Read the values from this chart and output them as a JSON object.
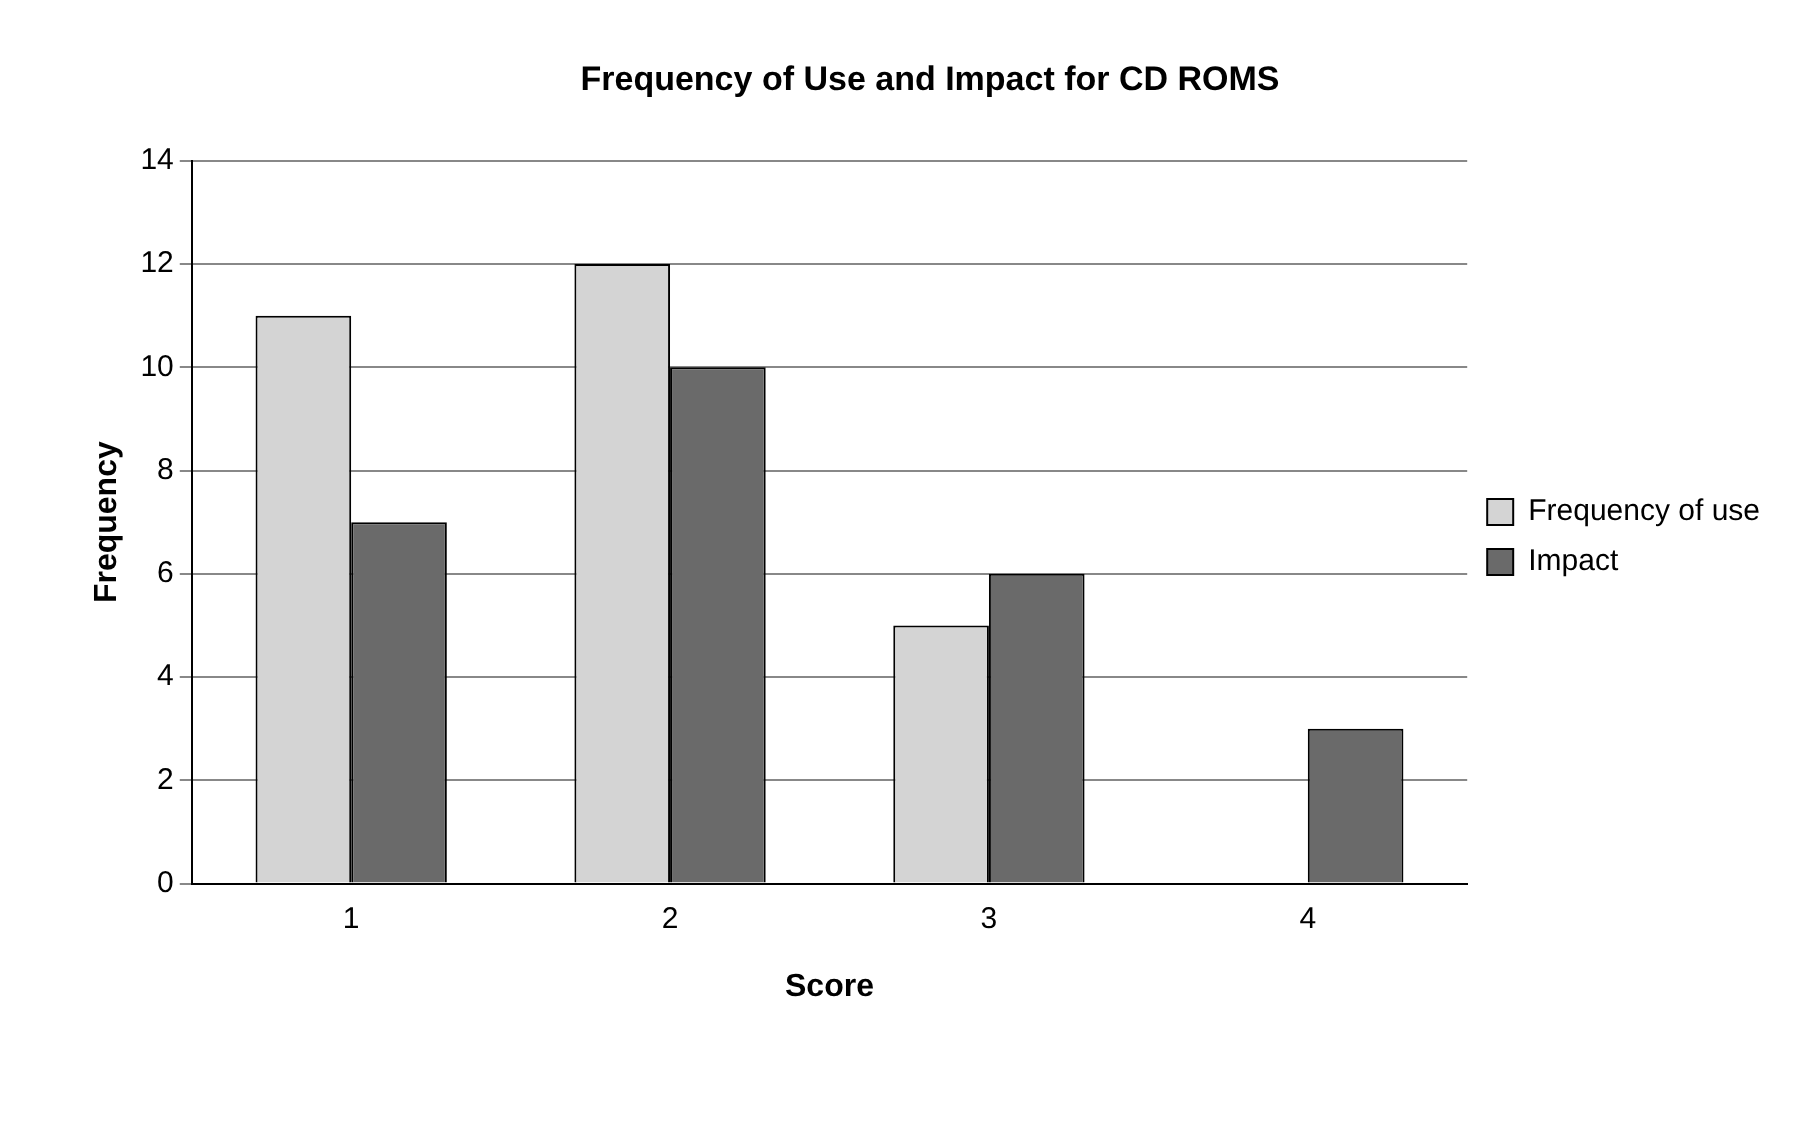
{
  "chart_data": {
    "type": "bar",
    "title": "Frequency of Use and Impact for CD ROMS",
    "xlabel": "Score",
    "ylabel": "Frequency",
    "categories": [
      "1",
      "2",
      "3",
      "4"
    ],
    "series": [
      {
        "name": "Frequency of use",
        "color": "#d4d4d4",
        "values": [
          11,
          12,
          5,
          0
        ]
      },
      {
        "name": "Impact",
        "color": "#6a6a6a",
        "values": [
          7,
          10,
          6,
          3
        ]
      }
    ],
    "ylim": [
      0,
      14
    ],
    "yticks": [
      0,
      2,
      4,
      6,
      8,
      10,
      12,
      14
    ],
    "grid": "y",
    "legend": "right"
  }
}
